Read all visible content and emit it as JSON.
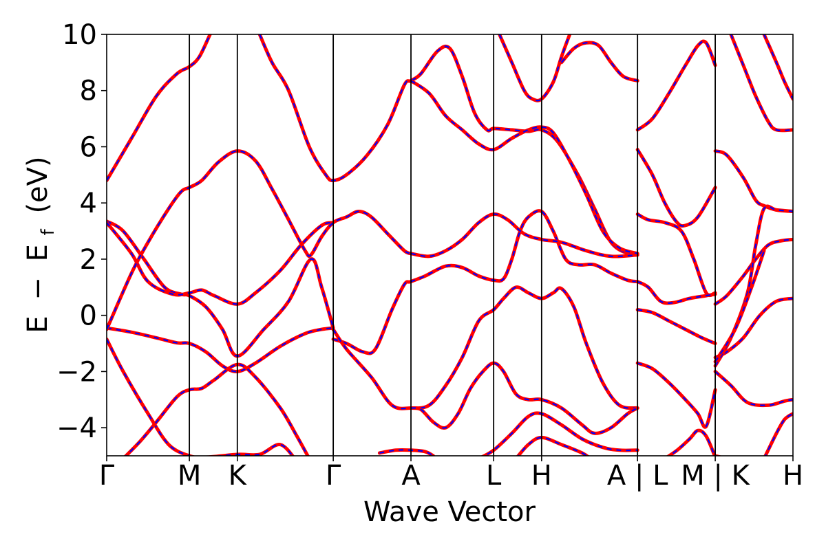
{
  "chart_data": {
    "type": "line",
    "xlabel": "Wave Vector",
    "ylabel_parts": [
      "E",
      "−",
      "E",
      "f",
      "(eV)"
    ],
    "ylim": [
      -5,
      10
    ],
    "yticks": [
      -4,
      -2,
      0,
      2,
      4,
      6,
      8,
      10
    ],
    "ytick_labels": [
      "−4",
      "−2",
      "0",
      "2",
      "4",
      "6",
      "8",
      "10"
    ],
    "kpath": [
      {
        "label": "Γ",
        "k": 0.0
      },
      {
        "label": "M",
        "k": 1.0
      },
      {
        "label": "K",
        "k": 1.58
      },
      {
        "label": "Γ",
        "k": 2.74
      },
      {
        "label": "A",
        "k": 3.68
      },
      {
        "label": "L",
        "k": 4.68
      },
      {
        "label": "H",
        "k": 5.26
      },
      {
        "label": "A | L",
        "k": 6.42
      },
      {
        "label": "M | K",
        "k": 7.36
      },
      {
        "label": "H",
        "k": 8.3
      }
    ],
    "grid": false,
    "series_style": {
      "outer_color": "#ff0000",
      "inner_color": "#0000ff",
      "inner_dash": "dashed"
    },
    "bands": [
      [
        [
          0,
          4.8
        ],
        [
          0.3,
          6.3
        ],
        [
          0.6,
          7.8
        ],
        [
          0.85,
          8.6
        ],
        [
          1.0,
          8.85
        ],
        [
          1.12,
          9.2
        ],
        [
          1.25,
          10.0
        ]
      ],
      [
        [
          0,
          3.35
        ],
        [
          0.2,
          3.0
        ],
        [
          0.45,
          2.0
        ],
        [
          0.7,
          1.0
        ],
        [
          0.9,
          0.75
        ],
        [
          1.0,
          0.7
        ],
        [
          1.2,
          0.3
        ],
        [
          1.4,
          -0.5
        ],
        [
          1.58,
          -1.45
        ],
        [
          1.9,
          -0.5
        ],
        [
          2.2,
          0.5
        ],
        [
          2.47,
          2.0
        ],
        [
          2.6,
          1.0
        ],
        [
          2.74,
          -0.45
        ]
      ],
      [
        [
          0,
          3.3
        ],
        [
          0.3,
          2.2
        ],
        [
          0.5,
          1.2
        ],
        [
          0.8,
          0.75
        ],
        [
          1.0,
          0.8
        ],
        [
          1.15,
          0.9
        ],
        [
          1.3,
          0.7
        ],
        [
          1.58,
          0.4
        ],
        [
          1.8,
          0.8
        ],
        [
          2.1,
          1.6
        ],
        [
          2.35,
          2.5
        ],
        [
          2.6,
          3.2
        ],
        [
          2.74,
          3.3
        ]
      ],
      [
        [
          0,
          -0.45
        ],
        [
          0.3,
          -0.6
        ],
        [
          0.6,
          -0.8
        ],
        [
          0.85,
          -0.98
        ],
        [
          1.0,
          -1.0
        ],
        [
          1.2,
          -1.3
        ],
        [
          1.4,
          -1.8
        ],
        [
          1.58,
          -2.0
        ],
        [
          1.8,
          -1.7
        ],
        [
          2.1,
          -1.1
        ],
        [
          2.4,
          -0.65
        ],
        [
          2.6,
          -0.5
        ],
        [
          2.74,
          -0.45
        ]
      ],
      [
        [
          0,
          -0.85
        ],
        [
          0.2,
          -2.0
        ],
        [
          0.5,
          -3.5
        ],
        [
          0.75,
          -4.6
        ],
        [
          1.0,
          -5.0
        ],
        [
          1.2,
          -5.05
        ],
        [
          1.58,
          -4.95
        ],
        [
          1.85,
          -4.95
        ],
        [
          2.1,
          -4.6
        ],
        [
          2.3,
          -5.2
        ]
      ],
      [
        [
          0,
          -0.5
        ],
        [
          0.3,
          1.5
        ],
        [
          0.5,
          2.6
        ],
        [
          0.75,
          3.8
        ],
        [
          0.9,
          4.4
        ],
        [
          1.0,
          4.55
        ],
        [
          1.15,
          4.8
        ],
        [
          1.35,
          5.45
        ],
        [
          1.58,
          5.85
        ],
        [
          1.8,
          5.5
        ],
        [
          2.0,
          4.5
        ],
        [
          2.2,
          3.4
        ],
        [
          2.4,
          2.3
        ],
        [
          2.47,
          2.15
        ],
        [
          2.6,
          2.8
        ],
        [
          2.74,
          3.3
        ],
        [
          2.9,
          3.5
        ],
        [
          3.05,
          3.7
        ],
        [
          3.2,
          3.5
        ],
        [
          3.4,
          2.9
        ],
        [
          3.6,
          2.3
        ],
        [
          3.68,
          2.2
        ]
      ],
      [
        [
          0.2,
          -5.1
        ],
        [
          0.4,
          -4.5
        ],
        [
          0.6,
          -3.8
        ],
        [
          0.85,
          -2.9
        ],
        [
          1.0,
          -2.65
        ],
        [
          1.15,
          -2.6
        ],
        [
          1.3,
          -2.3
        ],
        [
          1.58,
          -1.75
        ],
        [
          1.8,
          -2.2
        ],
        [
          2.1,
          -3.3
        ],
        [
          2.3,
          -4.3
        ],
        [
          2.45,
          -5.1
        ]
      ],
      [
        [
          1.85,
          10.0
        ],
        [
          2.0,
          9.0
        ],
        [
          2.2,
          8.0
        ],
        [
          2.45,
          6.0
        ],
        [
          2.65,
          5.0
        ],
        [
          2.74,
          4.8
        ],
        [
          2.9,
          5.0
        ],
        [
          3.15,
          5.7
        ],
        [
          3.4,
          6.8
        ],
        [
          3.6,
          8.2
        ],
        [
          3.68,
          8.35
        ],
        [
          3.8,
          8.6
        ],
        [
          4.0,
          9.4
        ],
        [
          4.15,
          9.5
        ],
        [
          4.3,
          8.5
        ],
        [
          4.45,
          7.2
        ],
        [
          4.6,
          6.6
        ],
        [
          4.68,
          6.65
        ],
        [
          4.9,
          6.6
        ],
        [
          5.1,
          6.55
        ],
        [
          5.26,
          6.6
        ],
        [
          5.45,
          6.2
        ],
        [
          5.7,
          5.0
        ],
        [
          5.9,
          3.8
        ],
        [
          6.1,
          2.6
        ],
        [
          6.3,
          2.2
        ],
        [
          6.42,
          2.15
        ]
      ],
      [
        [
          2.74,
          -0.85
        ],
        [
          2.9,
          -1.0
        ],
        [
          3.1,
          -1.3
        ],
        [
          3.25,
          -1.2
        ],
        [
          3.45,
          0.2
        ],
        [
          3.6,
          1.1
        ],
        [
          3.68,
          1.2
        ],
        [
          3.85,
          1.4
        ],
        [
          4.1,
          1.75
        ],
        [
          4.3,
          1.7
        ],
        [
          4.5,
          1.4
        ],
        [
          4.68,
          1.25
        ],
        [
          4.8,
          1.3
        ],
        [
          4.9,
          2.0
        ],
        [
          5.0,
          3.0
        ],
        [
          5.1,
          3.5
        ],
        [
          5.26,
          3.7
        ],
        [
          5.4,
          3.0
        ],
        [
          5.55,
          2.0
        ],
        [
          5.7,
          1.8
        ],
        [
          5.9,
          1.8
        ],
        [
          6.1,
          1.5
        ],
        [
          6.3,
          1.25
        ],
        [
          6.42,
          1.2
        ]
      ],
      [
        [
          2.74,
          -0.5
        ],
        [
          2.9,
          -1.2
        ],
        [
          3.2,
          -2.2
        ],
        [
          3.45,
          -3.2
        ],
        [
          3.68,
          -3.3
        ],
        [
          3.9,
          -3.2
        ],
        [
          4.1,
          -2.5
        ],
        [
          4.3,
          -1.5
        ],
        [
          4.5,
          -0.2
        ],
        [
          4.68,
          0.2
        ],
        [
          4.8,
          0.6
        ],
        [
          4.95,
          1.0
        ],
        [
          5.1,
          0.8
        ],
        [
          5.26,
          0.6
        ],
        [
          5.4,
          0.8
        ],
        [
          5.5,
          0.95
        ],
        [
          5.65,
          0.3
        ],
        [
          5.8,
          -1.0
        ],
        [
          6.0,
          -2.4
        ],
        [
          6.2,
          -3.2
        ],
        [
          6.42,
          -3.3
        ]
      ],
      [
        [
          3.68,
          2.2
        ],
        [
          3.9,
          2.1
        ],
        [
          4.1,
          2.3
        ],
        [
          4.3,
          2.7
        ],
        [
          4.5,
          3.3
        ],
        [
          4.68,
          3.6
        ],
        [
          4.85,
          3.4
        ],
        [
          5.05,
          2.9
        ],
        [
          5.26,
          2.7
        ],
        [
          5.5,
          2.6
        ],
        [
          5.8,
          2.3
        ],
        [
          6.1,
          2.1
        ],
        [
          6.42,
          2.15
        ]
      ],
      [
        [
          3.68,
          -3.3
        ],
        [
          3.8,
          -3.35
        ],
        [
          3.95,
          -3.8
        ],
        [
          4.1,
          -4.0
        ],
        [
          4.25,
          -3.5
        ],
        [
          4.4,
          -2.6
        ],
        [
          4.55,
          -2.0
        ],
        [
          4.68,
          -1.7
        ],
        [
          4.8,
          -2.0
        ],
        [
          4.95,
          -2.8
        ],
        [
          5.1,
          -3.0
        ],
        [
          5.26,
          -3.0
        ],
        [
          5.5,
          -3.3
        ],
        [
          5.75,
          -3.9
        ],
        [
          5.9,
          -4.2
        ],
        [
          6.1,
          -4.0
        ],
        [
          6.3,
          -3.5
        ],
        [
          6.42,
          -3.3
        ]
      ],
      [
        [
          3.3,
          -4.9
        ],
        [
          3.5,
          -4.8
        ],
        [
          3.68,
          -4.8
        ],
        [
          3.85,
          -4.85
        ],
        [
          3.95,
          -5.0
        ]
      ],
      [
        [
          3.68,
          8.35
        ],
        [
          3.9,
          7.9
        ],
        [
          4.1,
          7.1
        ],
        [
          4.3,
          6.6
        ],
        [
          4.5,
          6.1
        ],
        [
          4.68,
          5.9
        ],
        [
          4.9,
          6.3
        ],
        [
          5.1,
          6.6
        ],
        [
          5.26,
          6.7
        ],
        [
          5.4,
          6.5
        ],
        [
          5.6,
          5.5
        ],
        [
          5.8,
          4.3
        ],
        [
          6.0,
          3.0
        ],
        [
          6.2,
          2.4
        ],
        [
          6.42,
          2.2
        ]
      ],
      [
        [
          4.75,
          10.0
        ],
        [
          4.9,
          9.0
        ],
        [
          5.05,
          8.0
        ],
        [
          5.15,
          7.7
        ],
        [
          5.26,
          7.7
        ],
        [
          5.4,
          8.3
        ],
        [
          5.5,
          9.2
        ],
        [
          5.6,
          10.0
        ]
      ],
      [
        [
          5.5,
          9.0
        ],
        [
          5.65,
          9.5
        ],
        [
          5.8,
          9.7
        ],
        [
          5.95,
          9.6
        ],
        [
          6.1,
          9.0
        ],
        [
          6.25,
          8.5
        ],
        [
          6.42,
          8.35
        ]
      ],
      [
        [
          4.5,
          -5.1
        ],
        [
          4.68,
          -4.8
        ],
        [
          4.9,
          -4.2
        ],
        [
          5.1,
          -3.6
        ],
        [
          5.26,
          -3.5
        ],
        [
          5.5,
          -3.9
        ],
        [
          5.75,
          -4.4
        ],
        [
          6.0,
          -4.7
        ],
        [
          6.2,
          -4.8
        ],
        [
          6.42,
          -4.8
        ]
      ],
      [
        [
          4.95,
          -5.1
        ],
        [
          5.1,
          -4.6
        ],
        [
          5.26,
          -4.35
        ],
        [
          5.5,
          -4.6
        ],
        [
          5.75,
          -4.9
        ],
        [
          5.85,
          -5.1
        ]
      ],
      [
        [
          6.42,
          6.6
        ],
        [
          6.6,
          7.0
        ],
        [
          6.8,
          7.9
        ],
        [
          7.0,
          8.9
        ],
        [
          7.15,
          9.6
        ],
        [
          7.25,
          9.7
        ],
        [
          7.36,
          8.9
        ]
      ],
      [
        [
          6.42,
          5.9
        ],
        [
          6.6,
          5.0
        ],
        [
          6.75,
          4.0
        ],
        [
          6.9,
          3.3
        ],
        [
          7.0,
          3.2
        ],
        [
          7.15,
          3.5
        ],
        [
          7.36,
          4.55
        ]
      ],
      [
        [
          6.42,
          3.6
        ],
        [
          6.55,
          3.4
        ],
        [
          6.75,
          3.3
        ],
        [
          6.95,
          3.0
        ],
        [
          7.1,
          2.0
        ],
        [
          7.25,
          0.8
        ],
        [
          7.36,
          0.8
        ]
      ],
      [
        [
          6.42,
          1.2
        ],
        [
          6.55,
          1.0
        ],
        [
          6.7,
          0.5
        ],
        [
          6.85,
          0.45
        ],
        [
          7.05,
          0.6
        ],
        [
          7.25,
          0.7
        ],
        [
          7.36,
          0.75
        ]
      ],
      [
        [
          6.42,
          0.2
        ],
        [
          6.6,
          0.1
        ],
        [
          6.8,
          -0.2
        ],
        [
          7.0,
          -0.5
        ],
        [
          7.2,
          -0.8
        ],
        [
          7.36,
          -1.0
        ]
      ],
      [
        [
          6.42,
          -1.7
        ],
        [
          6.6,
          -1.9
        ],
        [
          6.8,
          -2.4
        ],
        [
          7.0,
          -3.0
        ],
        [
          7.15,
          -3.5
        ],
        [
          7.25,
          -3.95
        ],
        [
          7.36,
          -2.65
        ]
      ],
      [
        [
          6.75,
          -5.1
        ],
        [
          6.9,
          -4.8
        ],
        [
          7.05,
          -4.4
        ],
        [
          7.15,
          -4.1
        ],
        [
          7.25,
          -4.3
        ],
        [
          7.36,
          -5.05
        ]
      ],
      [
        [
          7.36,
          5.85
        ],
        [
          7.5,
          5.7
        ],
        [
          7.7,
          4.9
        ],
        [
          7.85,
          4.1
        ],
        [
          7.95,
          3.9
        ],
        [
          8.1,
          3.75
        ],
        [
          8.3,
          3.7
        ]
      ],
      [
        [
          7.36,
          0.4
        ],
        [
          7.5,
          0.7
        ],
        [
          7.7,
          1.4
        ],
        [
          7.85,
          2.0
        ],
        [
          8.0,
          2.5
        ],
        [
          8.15,
          2.65
        ],
        [
          8.3,
          2.7
        ]
      ],
      [
        [
          7.36,
          -1.5
        ],
        [
          7.5,
          -1.3
        ],
        [
          7.7,
          -0.8
        ],
        [
          7.9,
          0.0
        ],
        [
          8.1,
          0.5
        ],
        [
          8.3,
          0.6
        ]
      ],
      [
        [
          7.36,
          -1.8
        ],
        [
          7.55,
          -0.8
        ],
        [
          7.75,
          0.8
        ],
        [
          7.85,
          2.5
        ],
        [
          7.95,
          3.8
        ],
        [
          8.1,
          3.75
        ],
        [
          8.3,
          3.7
        ]
      ],
      [
        [
          7.36,
          -2.0
        ],
        [
          7.55,
          -2.5
        ],
        [
          7.75,
          -3.1
        ],
        [
          8.0,
          -3.2
        ],
        [
          8.2,
          -3.05
        ],
        [
          8.3,
          -3.0
        ]
      ],
      [
        [
          7.36,
          -1.65
        ],
        [
          7.6,
          -0.5
        ],
        [
          7.8,
          1.0
        ],
        [
          7.95,
          2.3
        ]
      ],
      [
        [
          7.55,
          10.0
        ],
        [
          7.7,
          8.9
        ],
        [
          7.85,
          7.8
        ],
        [
          8.0,
          6.9
        ],
        [
          8.1,
          6.6
        ],
        [
          8.3,
          6.6
        ]
      ],
      [
        [
          7.95,
          10.0
        ],
        [
          8.1,
          9.0
        ],
        [
          8.2,
          8.3
        ],
        [
          8.3,
          7.7
        ]
      ],
      [
        [
          7.36,
          -5.0
        ],
        [
          7.5,
          -5.1
        ]
      ],
      [
        [
          7.95,
          -5.1
        ],
        [
          8.1,
          -4.2
        ],
        [
          8.2,
          -3.7
        ],
        [
          8.3,
          -3.5
        ]
      ]
    ]
  }
}
